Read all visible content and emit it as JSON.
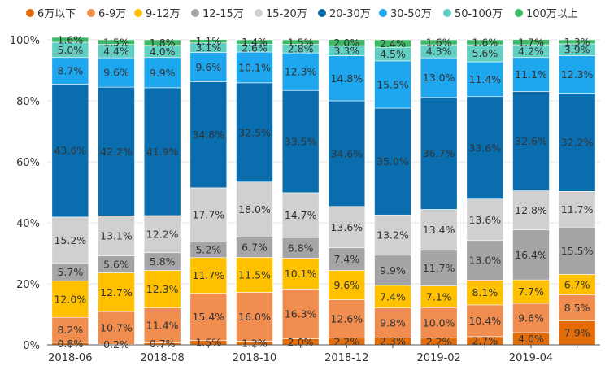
{
  "chart_data": {
    "type": "bar",
    "stacked": true,
    "percent": true,
    "categories": [
      "2018-06",
      "2018-07",
      "2018-08",
      "2018-09",
      "2018-10",
      "2018-11",
      "2018-12",
      "2019-01",
      "2019-02",
      "2019-03",
      "2019-04",
      "2019-05"
    ],
    "x_tick_labels": [
      "2018-06",
      "",
      "2018-08",
      "",
      "2018-10",
      "",
      "2018-12",
      "",
      "2019-02",
      "",
      "2019-04",
      ""
    ],
    "y_ticks": [
      "0%",
      "20%",
      "40%",
      "60%",
      "80%",
      "100%"
    ],
    "ylim": [
      0,
      100
    ],
    "legend_position": "top",
    "series": [
      {
        "name": "6万以下",
        "color": "#e36c09",
        "values": [
          0.8,
          0.2,
          0.7,
          1.5,
          1.2,
          2.0,
          2.2,
          2.3,
          2.2,
          2.7,
          4.0,
          7.9
        ],
        "labels": [
          "0.8%",
          "0.2%",
          "0.7%",
          "1.5%",
          "1.2%",
          "2.0%",
          "2.2%",
          "2.3%",
          "2.2%",
          "2.7%",
          "4.0%",
          "7.9%"
        ]
      },
      {
        "name": "6-9万",
        "color": "#f08d4f",
        "values": [
          8.2,
          10.7,
          11.4,
          15.4,
          16.0,
          16.3,
          12.6,
          9.8,
          10.0,
          10.4,
          9.6,
          8.5
        ],
        "labels": [
          "8.2%",
          "10.7%",
          "11.4%",
          "15.4%",
          "16.0%",
          "16.3%",
          "12.6%",
          "9.8%",
          "10.0%",
          "10.4%",
          "9.6%",
          "8.5%"
        ]
      },
      {
        "name": "9-12万",
        "color": "#ffc000",
        "values": [
          12.0,
          12.7,
          12.3,
          11.7,
          11.5,
          10.1,
          9.6,
          7.4,
          7.1,
          8.1,
          7.7,
          6.7
        ],
        "labels": [
          "12.0%",
          "12.7%",
          "12.3%",
          "11.7%",
          "11.5%",
          "10.1%",
          "9.6%",
          "7.4%",
          "7.1%",
          "8.1%",
          "7.7%",
          "6.7%"
        ]
      },
      {
        "name": "12-15万",
        "color": "#a5a5a5",
        "values": [
          5.7,
          5.6,
          5.8,
          5.2,
          6.7,
          6.8,
          7.4,
          9.9,
          11.7,
          13.0,
          16.4,
          15.5
        ],
        "labels": [
          "5.7%",
          "5.6%",
          "5.8%",
          "5.2%",
          "6.7%",
          "6.8%",
          "7.4%",
          "9.9%",
          "11.7%",
          "13.0%",
          "16.4%",
          "15.5%"
        ]
      },
      {
        "name": "15-20万",
        "color": "#d0d0d0",
        "values": [
          15.2,
          13.1,
          12.2,
          17.7,
          18.0,
          14.7,
          13.6,
          13.2,
          13.4,
          13.6,
          12.8,
          11.7
        ],
        "labels": [
          "15.2%",
          "13.1%",
          "12.2%",
          "17.7%",
          "18.0%",
          "14.7%",
          "13.6%",
          "13.2%",
          "13.4%",
          "13.6%",
          "12.8%",
          "11.7%"
        ]
      },
      {
        "name": "20-30万",
        "color": "#0a6eae",
        "values": [
          43.6,
          42.2,
          41.9,
          34.8,
          32.5,
          33.5,
          34.6,
          35.0,
          36.7,
          33.6,
          32.6,
          32.2
        ],
        "labels": [
          "43.6%",
          "42.2%",
          "41.9%",
          "34.8%",
          "32.5%",
          "33.5%",
          "34.6%",
          "35.0%",
          "36.7%",
          "33.6%",
          "32.6%",
          "32.2%"
        ]
      },
      {
        "name": "30-50万",
        "color": "#1ea6ee",
        "values": [
          8.7,
          9.6,
          9.9,
          9.6,
          10.1,
          12.3,
          14.8,
          15.5,
          13.0,
          11.4,
          11.1,
          12.3
        ],
        "labels": [
          "8.7%",
          "9.6%",
          "9.9%",
          "9.6%",
          "10.1%",
          "12.3%",
          "14.8%",
          "15.5%",
          "13.0%",
          "11.4%",
          "11.1%",
          "12.3%"
        ]
      },
      {
        "name": "50-100万",
        "color": "#61cfc4",
        "values": [
          5.0,
          4.4,
          4.0,
          3.1,
          2.6,
          2.8,
          3.3,
          4.5,
          4.3,
          5.6,
          4.2,
          3.9
        ],
        "labels": [
          "5.0%",
          "4.4%",
          "4.0%",
          "3.1%",
          "2.6%",
          "2.8%",
          "3.3%",
          "4.5%",
          "4.3%",
          "5.6%",
          "4.2%",
          "3.9%"
        ]
      },
      {
        "name": "100万以上",
        "color": "#3cb867",
        "values": [
          1.6,
          1.5,
          1.8,
          1.1,
          1.4,
          1.5,
          2.0,
          2.4,
          1.6,
          1.6,
          1.7,
          1.3
        ],
        "labels": [
          "1.6%",
          "1.5%",
          "1.8%",
          "1.1%",
          "1.4%",
          "1.5%",
          "2.0%",
          "2.4%",
          "1.6%",
          "1.6%",
          "1.7%",
          "1.3%"
        ]
      }
    ]
  }
}
